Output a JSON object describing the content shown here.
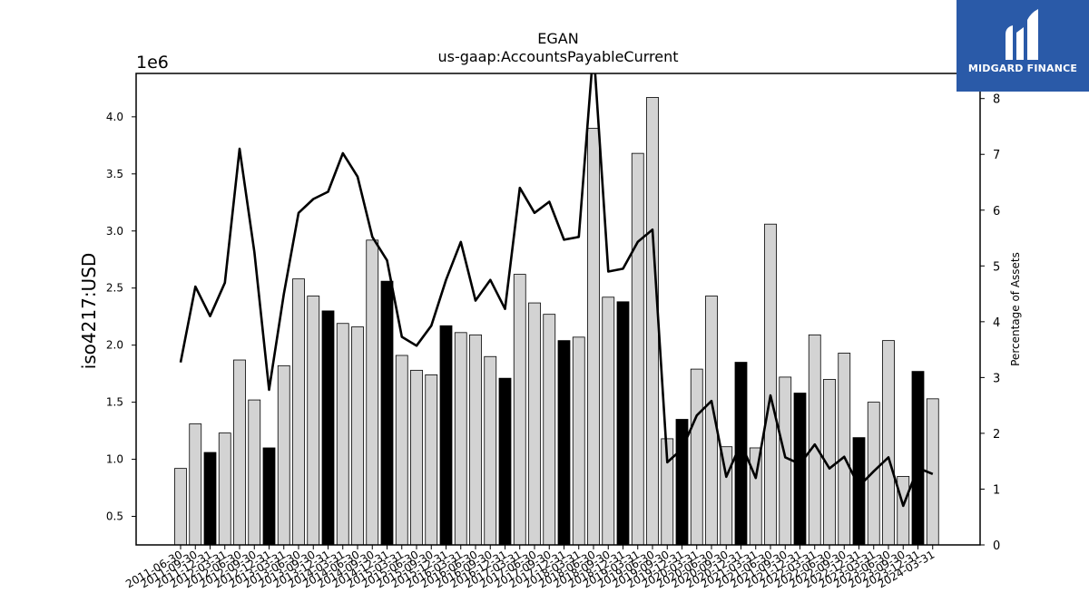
{
  "chart_data": {
    "type": "bar",
    "title": "EGAN",
    "subtitle": "us-gaap:AccountsPayableCurrent",
    "ylabel": "iso4217:USD",
    "y_offset_text": "1e6",
    "y2label": "Percentage of Assets",
    "ylim": [
      250000,
      4380000
    ],
    "y2lim": [
      0,
      8.45
    ],
    "yticks": [
      "0.5",
      "1.0",
      "1.5",
      "2.0",
      "2.5",
      "3.0",
      "3.5",
      "4.0"
    ],
    "y2ticks": [
      "0",
      "1",
      "2",
      "3",
      "4",
      "5",
      "6",
      "7",
      "8"
    ],
    "grid": false,
    "categories": [
      "2011-06-30",
      "2011-09-30",
      "2011-12-31",
      "2012-03-31",
      "2012-06-30",
      "2012-09-30",
      "2012-12-31",
      "2013-03-31",
      "2013-06-30",
      "2013-09-30",
      "2013-12-31",
      "2014-03-31",
      "2014-06-30",
      "2014-09-30",
      "2014-12-31",
      "2015-03-31",
      "2015-06-30",
      "2015-09-30",
      "2015-12-31",
      "2016-03-31",
      "2016-06-30",
      "2016-09-30",
      "2016-12-31",
      "2017-03-31",
      "2017-06-30",
      "2017-09-30",
      "2017-12-31",
      "2018-03-31",
      "2018-06-30",
      "2018-09-30",
      "2018-12-31",
      "2019-03-31",
      "2019-06-30",
      "2019-09-30",
      "2019-12-31",
      "2020-03-31",
      "2020-06-30",
      "2020-09-30",
      "2020-12-31",
      "2021-03-31",
      "2021-06-30",
      "2021-09-30",
      "2021-12-31",
      "2022-03-31",
      "2022-06-30",
      "2022-09-30",
      "2022-12-31",
      "2023-03-31",
      "2023-06-30",
      "2023-09-30",
      "2023-12-31",
      "2024-03-31"
    ],
    "series": [
      {
        "kind": "bar",
        "axis": "left",
        "values": [
          920000,
          1310000,
          1060000,
          1230000,
          1870000,
          1520000,
          1100000,
          1820000,
          2580000,
          2430000,
          2300000,
          2190000,
          2160000,
          2920000,
          2560000,
          1910000,
          1780000,
          1740000,
          2170000,
          2110000,
          2090000,
          1900000,
          1710000,
          2620000,
          2370000,
          2270000,
          2040000,
          2070000,
          3900000,
          2420000,
          2380000,
          3680000,
          4170000,
          1180000,
          1350000,
          1790000,
          2430000,
          1110000,
          1850000,
          1100000,
          3060000,
          1720000,
          1580000,
          2090000,
          1700000,
          1930000,
          1190000,
          1500000,
          2040000,
          850000,
          1770000,
          1530000
        ],
        "fiscal_year_end": [
          false,
          false,
          true,
          false,
          false,
          false,
          true,
          false,
          false,
          false,
          true,
          false,
          false,
          false,
          true,
          false,
          false,
          false,
          true,
          false,
          false,
          false,
          true,
          false,
          false,
          false,
          true,
          false,
          false,
          false,
          true,
          false,
          false,
          false,
          true,
          false,
          false,
          false,
          true,
          false,
          false,
          false,
          true,
          false,
          false,
          false,
          true,
          false,
          false,
          false,
          true,
          false
        ],
        "color": "#d3d3d3",
        "fiscal_year_end_color": "#000000"
      },
      {
        "kind": "line",
        "axis": "right",
        "values": [
          3.27,
          4.63,
          4.1,
          4.7,
          7.1,
          5.25,
          2.78,
          4.5,
          5.95,
          6.2,
          6.33,
          7.02,
          6.6,
          5.52,
          5.1,
          3.73,
          3.57,
          3.93,
          4.75,
          5.43,
          4.38,
          4.75,
          4.23,
          6.4,
          5.95,
          6.15,
          5.47,
          5.52,
          8.9,
          4.9,
          4.95,
          5.43,
          5.65,
          1.48,
          1.72,
          2.32,
          2.58,
          1.22,
          1.82,
          1.2,
          2.68,
          1.57,
          1.45,
          1.8,
          1.37,
          1.58,
          1.05,
          1.32,
          1.57,
          0.7,
          1.38,
          1.27
        ],
        "color": "#000000"
      }
    ]
  },
  "logo": {
    "text": "MIDGARD FINANCE",
    "bg_color": "#2a5aa8"
  }
}
